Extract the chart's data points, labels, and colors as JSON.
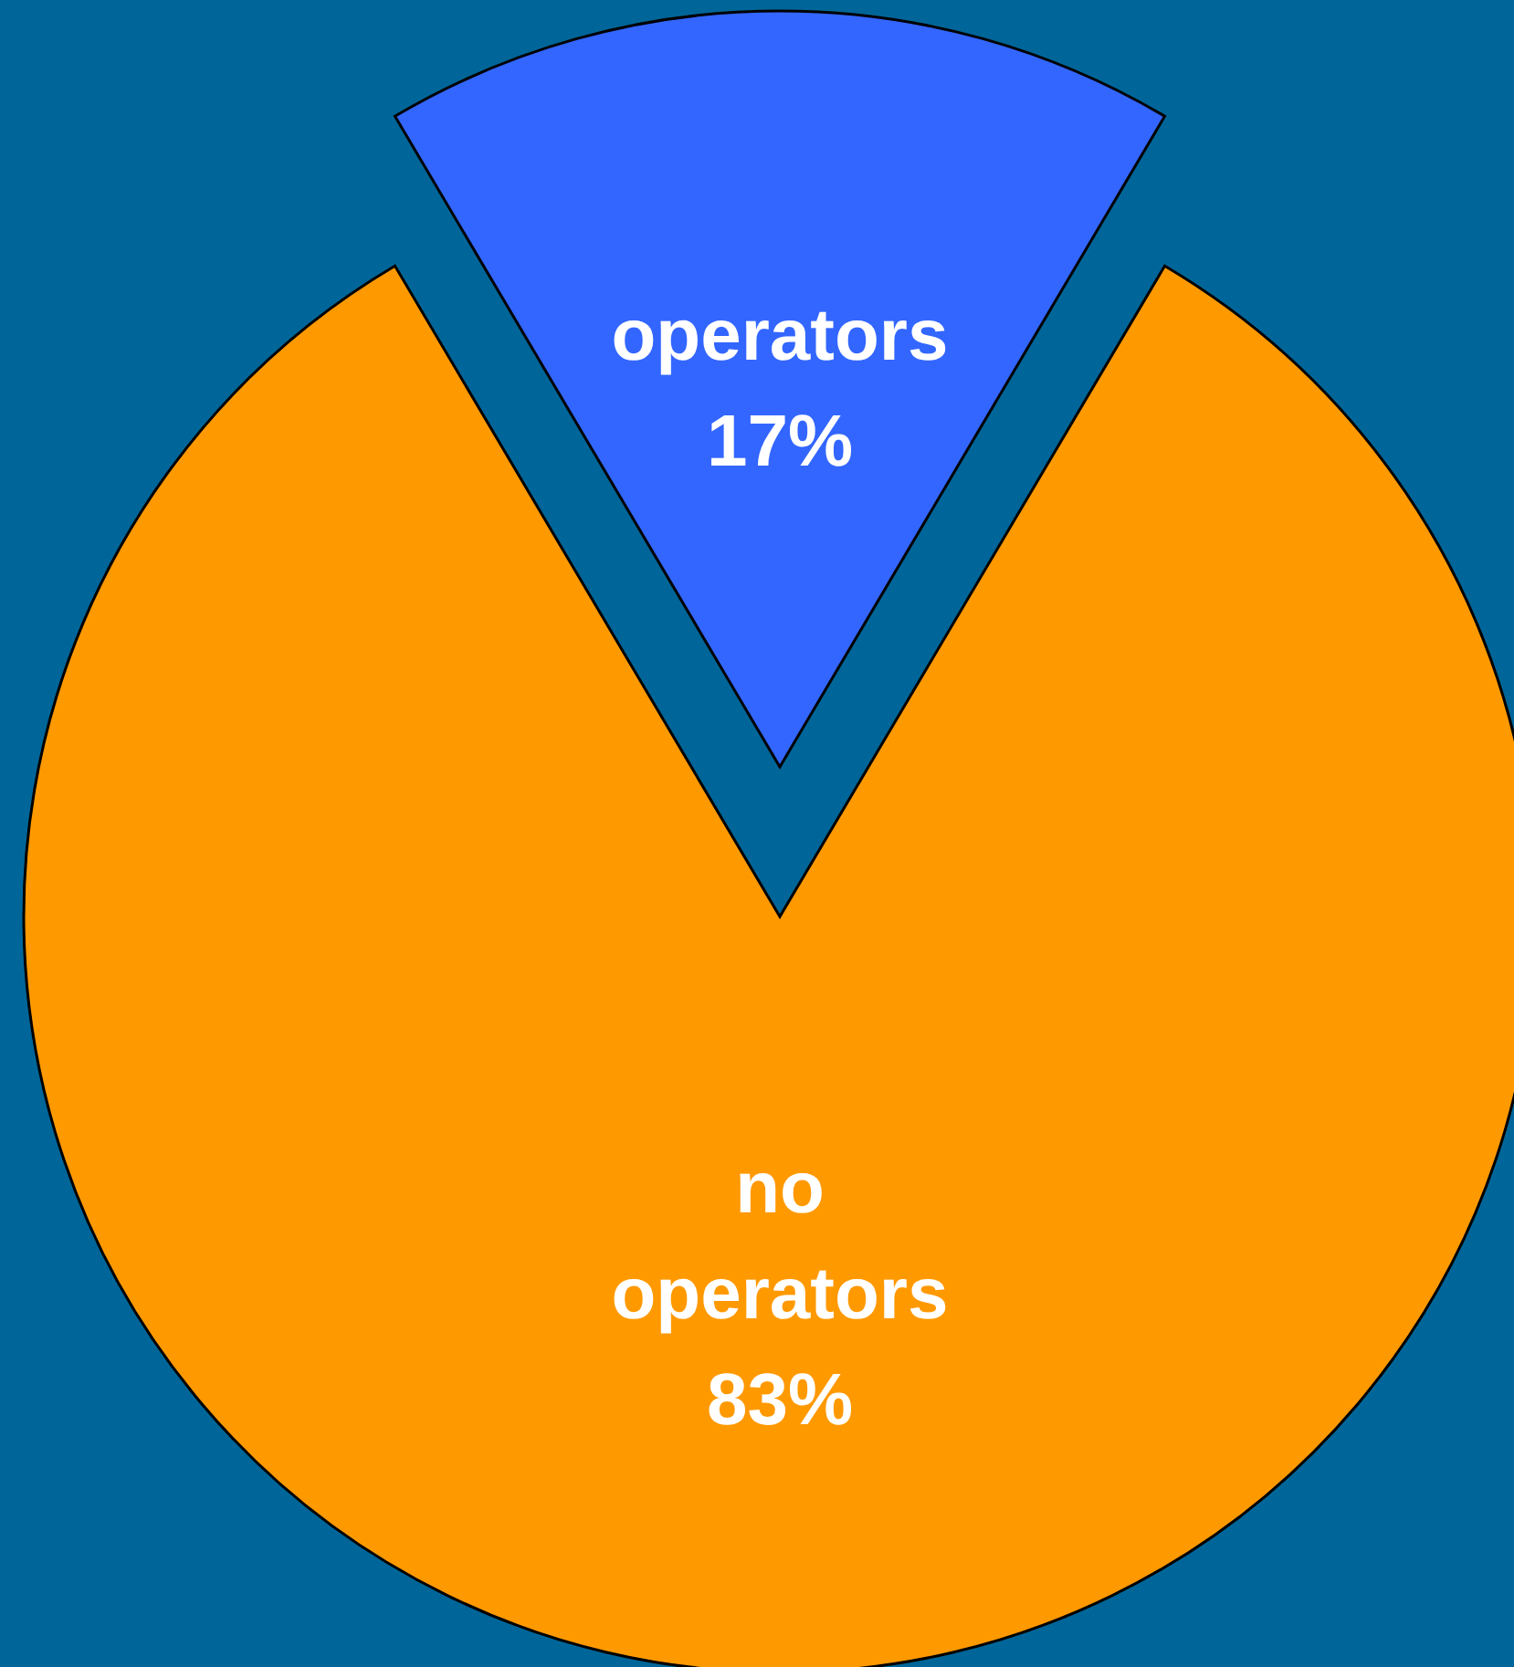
{
  "chart_data": {
    "type": "pie",
    "categories": [
      "operators",
      "no operators"
    ],
    "values": [
      17,
      83
    ],
    "colors": [
      "#3366ff",
      "#ff9900"
    ],
    "value_labels": [
      "17%",
      "83%"
    ]
  }
}
